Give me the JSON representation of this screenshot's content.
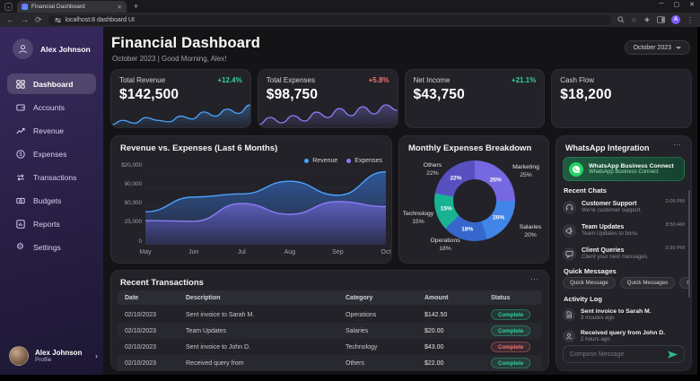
{
  "browser": {
    "tab_title": "Financial Dashboard",
    "new_tab": "+",
    "tab_close": "✕",
    "url": "localhost:8 dashboard UI",
    "controls": {
      "minimize": "─",
      "maximize": "▢",
      "close": "✕"
    },
    "menu_dots": "⋮"
  },
  "sidebar": {
    "user": "Alex Johnson",
    "items": [
      {
        "label": "Dashboard",
        "icon": "dashboard-icon",
        "active": true
      },
      {
        "label": "Accounts",
        "icon": "wallet-icon",
        "active": false
      },
      {
        "label": "Revenue",
        "icon": "line-chart-icon",
        "active": false
      },
      {
        "label": "Expenses",
        "icon": "dollar-circle-icon",
        "active": false
      },
      {
        "label": "Transactions",
        "icon": "arrows-icon",
        "active": false
      },
      {
        "label": "Budgets",
        "icon": "banknote-icon",
        "active": false
      },
      {
        "label": "Reports",
        "icon": "bar-chart-icon",
        "active": false
      },
      {
        "label": "Settings",
        "icon": "gear-icon",
        "active": false
      }
    ],
    "profile": {
      "name": "Alex Johnson",
      "role": "Profile",
      "chevron": "›"
    }
  },
  "header": {
    "title": "Financial Dashboard",
    "subtitle": "October 2023 | Good Morning, Alex!",
    "period": "October 2023"
  },
  "cards": [
    {
      "label": "Total Revenue",
      "value": "$142,500",
      "delta": "+12.4%",
      "delta_color": "#34d399",
      "spark_color": "#4da3ff",
      "spark": [
        6,
        9,
        7,
        11,
        9,
        8,
        12,
        10,
        15,
        12,
        17,
        14,
        20
      ]
    },
    {
      "label": "Total Expenses",
      "value": "$98,750",
      "delta": "+5.8%",
      "delta_color": "#f87171",
      "spark_color": "#8b7cf6",
      "spark": [
        5,
        9,
        6,
        10,
        7,
        12,
        9,
        14,
        10,
        15,
        11,
        16,
        13
      ]
    },
    {
      "label": "Net Income",
      "value": "$43,750",
      "delta": "+21.1%",
      "delta_color": "#34d399"
    },
    {
      "label": "Cash Flow",
      "value": "$18,200"
    }
  ],
  "chart_data": [
    {
      "type": "area",
      "title": "Revenue vs. Expenses (Last 6 Months)",
      "x": [
        "May",
        "Jun",
        "Jul",
        "Aug",
        "Sep",
        "Oct"
      ],
      "series": [
        {
          "name": "Revenue",
          "color": "#4da3ff",
          "values": [
            52000,
            75000,
            80000,
            100000,
            78000,
            115000
          ]
        },
        {
          "name": "Expenses",
          "color": "#8b7cf6",
          "values": [
            38000,
            37000,
            65000,
            48000,
            68000,
            60000
          ]
        }
      ],
      "ytick_labels": [
        "$20,000",
        "90,000",
        "60,000",
        "25,000",
        "0"
      ],
      "ylim": [
        0,
        120000
      ],
      "grid": true,
      "legend_position": "top-right"
    },
    {
      "type": "pie",
      "title": "Monthly Expenses Breakdown",
      "slices": [
        {
          "label": "Marketing",
          "pct": 25,
          "pct_label": "25%",
          "color": "#7668e0"
        },
        {
          "label": "Salaries",
          "pct": 20,
          "pct_label": "20%",
          "color": "#4285e8"
        },
        {
          "label": "Operations",
          "pct": 18,
          "pct_label": "18%",
          "color": "#3667cf"
        },
        {
          "label": "Technology",
          "pct": 15,
          "pct_label": "15%",
          "color": "#18b393"
        },
        {
          "label": "Others",
          "pct": 22,
          "pct_label": "22%",
          "color": "#584fc0"
        }
      ]
    }
  ],
  "whatsapp": {
    "title": "WhatsApp Integration",
    "menu": "⋯",
    "connect": {
      "title": "WhatsApp Business Connect",
      "subtitle": "WhatsApp Business Connect"
    },
    "recent_chats_title": "Recent Chats",
    "chats": [
      {
        "name": "Customer Support",
        "preview": "We're customer support.",
        "time": "2:00 PM",
        "icon": "headset-icon"
      },
      {
        "name": "Team Updates",
        "preview": "Team Updates to bons.",
        "time": "8:50 AM",
        "icon": "megaphone-icon"
      },
      {
        "name": "Client Queries",
        "preview": "Client your next messages.",
        "time": "3:30 PM",
        "icon": "chat-bubble-icon"
      }
    ],
    "quick_title": "Quick Messages",
    "quick": [
      "Quick Message",
      "Quick Messages",
      "Quick Messages"
    ],
    "activity_title": "Activity Log",
    "activity": [
      {
        "text": "Sent invoice to Sarah M.",
        "time": "3 moutes ago",
        "icon": "document-icon"
      },
      {
        "text": "Received query from John D.",
        "time": "2 hours ago",
        "icon": "person-icon"
      }
    ],
    "compose_placeholder": "Compose Message"
  },
  "transactions": {
    "title": "Recent Transactions",
    "menu": "⋯",
    "columns": [
      "Date",
      "Description",
      "Category",
      "Amount",
      "Status"
    ],
    "rows": [
      {
        "date": "02/10/2023",
        "desc": "Sent invoice to Sarah M.",
        "cat": "Operations",
        "amount": "$142.50",
        "status": "Complete",
        "status_color": "green"
      },
      {
        "date": "02/10/2023",
        "desc": "Team Updates",
        "cat": "Salaries",
        "amount": "$20.00",
        "status": "Complete",
        "status_color": "green"
      },
      {
        "date": "02/10/2023",
        "desc": "Sent invoice to John D.",
        "cat": "Technology",
        "amount": "$43.00",
        "status": "Complete",
        "status_color": "red"
      },
      {
        "date": "02/10/2023",
        "desc": "Received query from",
        "cat": "Others",
        "amount": "$22.00",
        "status": "Complete",
        "status_color": "green"
      }
    ]
  }
}
